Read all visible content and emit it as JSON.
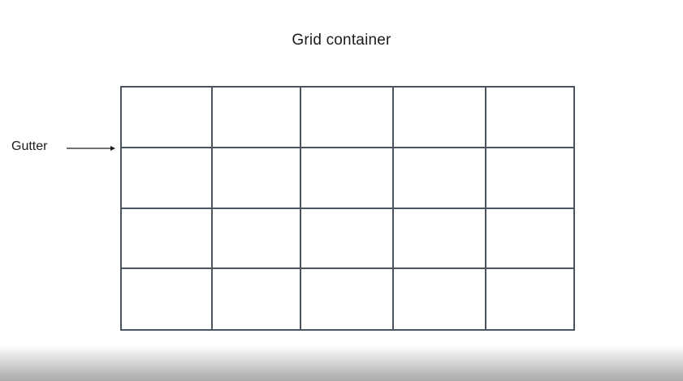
{
  "title": "Grid container",
  "annotation": {
    "label": "Gutter",
    "target": "row-gutter"
  },
  "grid": {
    "columns": 5,
    "rows": 4,
    "line_color": "#4a5560"
  },
  "icons": {
    "pointer": "arrow-right-icon"
  }
}
